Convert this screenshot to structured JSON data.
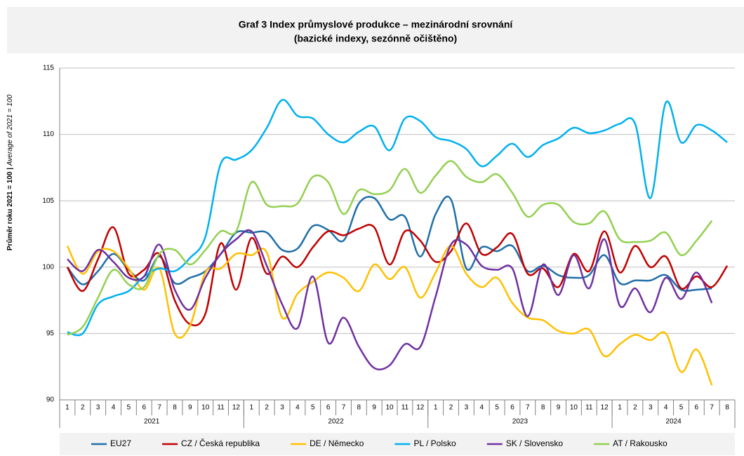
{
  "chart_data": {
    "type": "line",
    "title": "Graf 3 Index průmyslové produkce – mezinárodní srovnání",
    "subtitle": "(bazické indexy, sezónně očištěno)",
    "y_label": "Průměr roku 2021 = 100 |",
    "y_label_en": "Average of 2021 = 100",
    "categories": [
      "1",
      "2",
      "3",
      "4",
      "5",
      "6",
      "7",
      "8",
      "9",
      "10",
      "11",
      "12",
      "1",
      "2",
      "3",
      "4",
      "5",
      "6",
      "7",
      "8",
      "9",
      "10",
      "11",
      "12",
      "1",
      "2",
      "3",
      "4",
      "5",
      "6",
      "7",
      "8",
      "9",
      "10",
      "11",
      "12",
      "1",
      "2",
      "3",
      "4",
      "5",
      "6",
      "7",
      "8"
    ],
    "x_groups": [
      "2021",
      "2022",
      "2023",
      "2024"
    ],
    "ylim": [
      90,
      115
    ],
    "yticks": [
      90,
      95,
      100,
      105,
      110,
      115
    ],
    "grid": true,
    "series": [
      {
        "name": "EU27",
        "color": "#1f6fa8",
        "values": [
          100.0,
          98.7,
          99.7,
          101.0,
          99.8,
          99.0,
          100.8,
          98.8,
          99.2,
          99.7,
          101.0,
          102.6,
          102.6,
          102.6,
          101.3,
          101.4,
          103.1,
          102.8,
          102.0,
          104.8,
          105.2,
          103.6,
          103.8,
          100.8,
          104.0,
          105.1,
          99.9,
          101.5,
          101.2,
          101.6,
          99.7,
          100.1,
          99.4,
          99.2,
          99.4,
          100.9,
          98.8,
          99.0,
          99.0,
          99.4,
          98.3,
          98.3,
          98.4,
          null
        ]
      },
      {
        "name": "CZ / Česká republika",
        "color": "#c00000",
        "values": [
          100.0,
          98.2,
          100.6,
          103.0,
          99.5,
          99.8,
          101.0,
          97.5,
          95.7,
          96.5,
          101.8,
          98.3,
          102.2,
          99.5,
          100.8,
          100.0,
          101.5,
          102.7,
          102.4,
          102.9,
          103.0,
          100.2,
          102.7,
          102.0,
          100.4,
          101.2,
          103.3,
          101.0,
          101.5,
          102.5,
          99.5,
          99.9,
          98.5,
          101.0,
          99.7,
          102.7,
          99.6,
          101.6,
          100.0,
          100.8,
          98.4,
          99.3,
          98.5,
          100.1
        ]
      },
      {
        "name": "DE / Německo",
        "color": "#ffc000",
        "values": [
          101.6,
          99.5,
          101.2,
          101.2,
          99.9,
          98.3,
          99.9,
          95.0,
          95.6,
          99.6,
          99.9,
          101.0,
          100.9,
          101.1,
          96.2,
          98.0,
          98.9,
          99.6,
          99.2,
          98.2,
          100.2,
          99.1,
          100.0,
          97.7,
          99.6,
          101.6,
          99.5,
          98.5,
          99.2,
          97.3,
          96.2,
          96.0,
          95.2,
          95.0,
          95.3,
          93.3,
          94.2,
          94.9,
          94.5,
          95.0,
          92.1,
          93.8,
          91.1,
          null
        ]
      },
      {
        "name": "PL / Polsko",
        "color": "#00b0f0",
        "values": [
          95.1,
          95.0,
          97.2,
          97.8,
          98.2,
          99.3,
          99.9,
          99.7,
          100.7,
          102.3,
          107.8,
          108.1,
          108.8,
          110.5,
          112.6,
          111.4,
          111.2,
          110.0,
          109.4,
          110.2,
          110.6,
          108.8,
          111.2,
          111.0,
          109.8,
          109.5,
          108.9,
          107.6,
          108.4,
          109.3,
          108.3,
          109.2,
          109.7,
          110.5,
          110.1,
          110.3,
          110.8,
          110.8,
          105.2,
          112.4,
          109.4,
          110.7,
          110.3,
          109.4
        ]
      },
      {
        "name": "SK / Slovensko",
        "color": "#7030a0",
        "values": [
          100.6,
          99.7,
          101.3,
          100.4,
          99.2,
          99.3,
          101.7,
          98.3,
          96.8,
          99.2,
          101.0,
          102.1,
          102.7,
          100.1,
          97.2,
          95.4,
          99.3,
          94.3,
          96.2,
          94.0,
          92.4,
          92.6,
          94.2,
          94.0,
          97.8,
          101.7,
          101.7,
          100.1,
          99.8,
          99.9,
          96.3,
          100.2,
          97.9,
          100.9,
          98.4,
          102.1,
          97.1,
          98.4,
          96.6,
          99.2,
          97.6,
          99.6,
          97.3,
          null
        ]
      },
      {
        "name": "AT / Rakousko",
        "color": "#92d050",
        "values": [
          94.9,
          95.5,
          97.7,
          99.8,
          98.7,
          98.5,
          101.0,
          101.3,
          100.2,
          101.3,
          102.7,
          102.7,
          106.4,
          104.7,
          104.6,
          104.8,
          106.8,
          106.4,
          104.0,
          105.8,
          105.5,
          105.8,
          107.4,
          105.6,
          106.9,
          108.0,
          106.8,
          106.4,
          107.0,
          105.6,
          103.8,
          104.7,
          104.7,
          103.4,
          103.3,
          104.2,
          102.1,
          101.9,
          102.0,
          102.6,
          100.9,
          102.0,
          103.5,
          null
        ]
      }
    ]
  }
}
